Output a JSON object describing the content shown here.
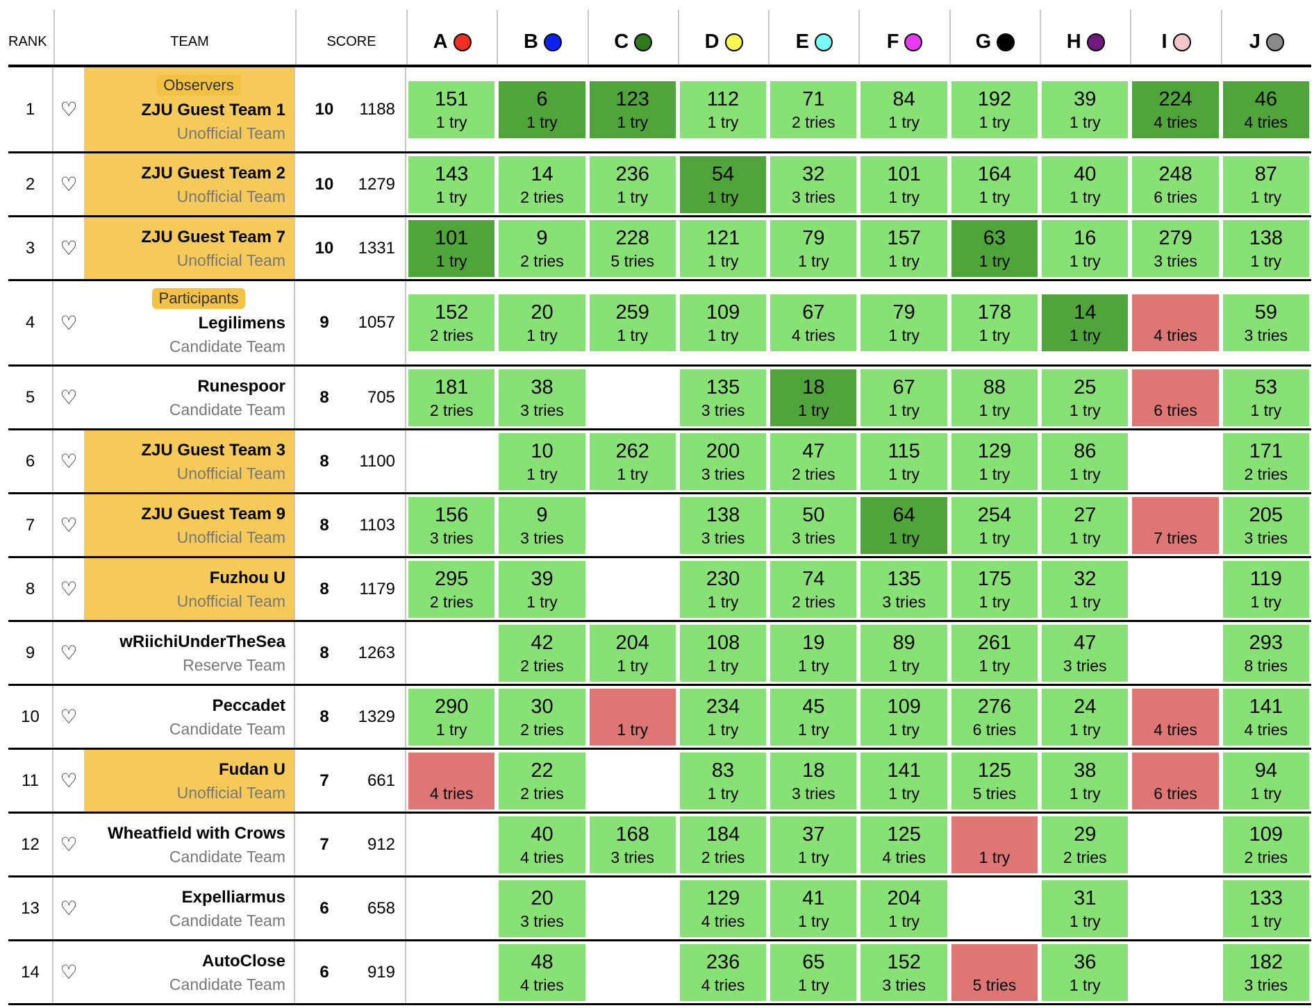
{
  "header": {
    "rank": "RANK",
    "team": "TEAM",
    "score": "SCORE"
  },
  "problems": [
    {
      "label": "A",
      "color": "#ee3124"
    },
    {
      "label": "B",
      "color": "#0a22f5"
    },
    {
      "label": "C",
      "color": "#2f7a1d"
    },
    {
      "label": "D",
      "color": "#fdf851"
    },
    {
      "label": "E",
      "color": "#78fbfd"
    },
    {
      "label": "F",
      "color": "#ea3af3"
    },
    {
      "label": "G",
      "color": "#000000"
    },
    {
      "label": "H",
      "color": "#701a7d"
    },
    {
      "label": "I",
      "color": "#f4c5ca"
    },
    {
      "label": "J",
      "color": "#8a8a8a"
    }
  ],
  "colors": {
    "solved": "#88e174",
    "first": "#4fa539",
    "failed": "#de7674",
    "unofficial": "#f6ca58",
    "badge": "#f3c244"
  },
  "rows": [
    {
      "rank": "1",
      "badge": "Observers",
      "name": "ZJU Guest Team 1",
      "sub": "Unofficial Team",
      "unofficial": true,
      "solved": "10",
      "penalty": "1188",
      "cells": [
        [
          "151",
          "1 try",
          "s"
        ],
        [
          "6",
          "1 try",
          "x"
        ],
        [
          "123",
          "1 try",
          "x"
        ],
        [
          "112",
          "1 try",
          "s"
        ],
        [
          "71",
          "2 tries",
          "s"
        ],
        [
          "84",
          "1 try",
          "s"
        ],
        [
          "192",
          "1 try",
          "s"
        ],
        [
          "39",
          "1 try",
          "s"
        ],
        [
          "224",
          "4 tries",
          "x"
        ],
        [
          "46",
          "4 tries",
          "x"
        ]
      ]
    },
    {
      "rank": "2",
      "name": "ZJU Guest Team 2",
      "sub": "Unofficial Team",
      "unofficial": true,
      "solved": "10",
      "penalty": "1279",
      "cells": [
        [
          "143",
          "1 try",
          "s"
        ],
        [
          "14",
          "2 tries",
          "s"
        ],
        [
          "236",
          "1 try",
          "s"
        ],
        [
          "54",
          "1 try",
          "x"
        ],
        [
          "32",
          "3 tries",
          "s"
        ],
        [
          "101",
          "1 try",
          "s"
        ],
        [
          "164",
          "1 try",
          "s"
        ],
        [
          "40",
          "1 try",
          "s"
        ],
        [
          "248",
          "6 tries",
          "s"
        ],
        [
          "87",
          "1 try",
          "s"
        ]
      ]
    },
    {
      "rank": "3",
      "name": "ZJU Guest Team 7",
      "sub": "Unofficial Team",
      "unofficial": true,
      "solved": "10",
      "penalty": "1331",
      "cells": [
        [
          "101",
          "1 try",
          "x"
        ],
        [
          "9",
          "2 tries",
          "s"
        ],
        [
          "228",
          "5 tries",
          "s"
        ],
        [
          "121",
          "1 try",
          "s"
        ],
        [
          "79",
          "1 try",
          "s"
        ],
        [
          "157",
          "1 try",
          "s"
        ],
        [
          "63",
          "1 try",
          "x"
        ],
        [
          "16",
          "1 try",
          "s"
        ],
        [
          "279",
          "3 tries",
          "s"
        ],
        [
          "138",
          "1 try",
          "s"
        ]
      ]
    },
    {
      "rank": "4",
      "badge": "Participants",
      "name": "Legilimens",
      "sub": "Candidate Team",
      "unofficial": false,
      "solved": "9",
      "penalty": "1057",
      "cells": [
        [
          "152",
          "2 tries",
          "s"
        ],
        [
          "20",
          "1 try",
          "s"
        ],
        [
          "259",
          "1 try",
          "s"
        ],
        [
          "109",
          "1 try",
          "s"
        ],
        [
          "67",
          "4 tries",
          "s"
        ],
        [
          "79",
          "1 try",
          "s"
        ],
        [
          "178",
          "1 try",
          "s"
        ],
        [
          "14",
          "1 try",
          "x"
        ],
        [
          "",
          "4 tries",
          "f"
        ],
        [
          "59",
          "3 tries",
          "s"
        ]
      ]
    },
    {
      "rank": "5",
      "name": "Runespoor",
      "sub": "Candidate Team",
      "unofficial": false,
      "solved": "8",
      "penalty": "705",
      "cells": [
        [
          "181",
          "2 tries",
          "s"
        ],
        [
          "38",
          "3 tries",
          "s"
        ],
        null,
        [
          "135",
          "3 tries",
          "s"
        ],
        [
          "18",
          "1 try",
          "x"
        ],
        [
          "67",
          "1 try",
          "s"
        ],
        [
          "88",
          "1 try",
          "s"
        ],
        [
          "25",
          "1 try",
          "s"
        ],
        [
          "",
          "6 tries",
          "f"
        ],
        [
          "53",
          "1 try",
          "s"
        ]
      ]
    },
    {
      "rank": "6",
      "name": "ZJU Guest Team 3",
      "sub": "Unofficial Team",
      "unofficial": true,
      "solved": "8",
      "penalty": "1100",
      "cells": [
        null,
        [
          "10",
          "1 try",
          "s"
        ],
        [
          "262",
          "1 try",
          "s"
        ],
        [
          "200",
          "3 tries",
          "s"
        ],
        [
          "47",
          "2 tries",
          "s"
        ],
        [
          "115",
          "1 try",
          "s"
        ],
        [
          "129",
          "1 try",
          "s"
        ],
        [
          "86",
          "1 try",
          "s"
        ],
        null,
        [
          "171",
          "2 tries",
          "s"
        ]
      ]
    },
    {
      "rank": "7",
      "name": "ZJU Guest Team 9",
      "sub": "Unofficial Team",
      "unofficial": true,
      "solved": "8",
      "penalty": "1103",
      "cells": [
        [
          "156",
          "3 tries",
          "s"
        ],
        [
          "9",
          "3 tries",
          "s"
        ],
        null,
        [
          "138",
          "3 tries",
          "s"
        ],
        [
          "50",
          "3 tries",
          "s"
        ],
        [
          "64",
          "1 try",
          "x"
        ],
        [
          "254",
          "1 try",
          "s"
        ],
        [
          "27",
          "1 try",
          "s"
        ],
        [
          "",
          "7 tries",
          "f"
        ],
        [
          "205",
          "3 tries",
          "s"
        ]
      ]
    },
    {
      "rank": "8",
      "name": "Fuzhou U",
      "sub": "Unofficial Team",
      "unofficial": true,
      "solved": "8",
      "penalty": "1179",
      "cells": [
        [
          "295",
          "2 tries",
          "s"
        ],
        [
          "39",
          "1 try",
          "s"
        ],
        null,
        [
          "230",
          "1 try",
          "s"
        ],
        [
          "74",
          "2 tries",
          "s"
        ],
        [
          "135",
          "3 tries",
          "s"
        ],
        [
          "175",
          "1 try",
          "s"
        ],
        [
          "32",
          "1 try",
          "s"
        ],
        null,
        [
          "119",
          "1 try",
          "s"
        ]
      ]
    },
    {
      "rank": "9",
      "name": "wRiichiUnderTheSea",
      "sub": "Reserve Team",
      "unofficial": false,
      "solved": "8",
      "penalty": "1263",
      "cells": [
        null,
        [
          "42",
          "2 tries",
          "s"
        ],
        [
          "204",
          "1 try",
          "s"
        ],
        [
          "108",
          "1 try",
          "s"
        ],
        [
          "19",
          "1 try",
          "s"
        ],
        [
          "89",
          "1 try",
          "s"
        ],
        [
          "261",
          "1 try",
          "s"
        ],
        [
          "47",
          "3 tries",
          "s"
        ],
        null,
        [
          "293",
          "8 tries",
          "s"
        ]
      ]
    },
    {
      "rank": "10",
      "name": "Peccadet",
      "sub": "Candidate Team",
      "unofficial": false,
      "solved": "8",
      "penalty": "1329",
      "cells": [
        [
          "290",
          "1 try",
          "s"
        ],
        [
          "30",
          "2 tries",
          "s"
        ],
        [
          "",
          "1 try",
          "f"
        ],
        [
          "234",
          "1 try",
          "s"
        ],
        [
          "45",
          "1 try",
          "s"
        ],
        [
          "109",
          "1 try",
          "s"
        ],
        [
          "276",
          "6 tries",
          "s"
        ],
        [
          "24",
          "1 try",
          "s"
        ],
        [
          "",
          "4 tries",
          "f"
        ],
        [
          "141",
          "4 tries",
          "s"
        ]
      ]
    },
    {
      "rank": "11",
      "name": "Fudan U",
      "sub": "Unofficial Team",
      "unofficial": true,
      "solved": "7",
      "penalty": "661",
      "cells": [
        [
          "",
          "4 tries",
          "f"
        ],
        [
          "22",
          "2 tries",
          "s"
        ],
        null,
        [
          "83",
          "1 try",
          "s"
        ],
        [
          "18",
          "3 tries",
          "s"
        ],
        [
          "141",
          "1 try",
          "s"
        ],
        [
          "125",
          "5 tries",
          "s"
        ],
        [
          "38",
          "1 try",
          "s"
        ],
        [
          "",
          "6 tries",
          "f"
        ],
        [
          "94",
          "1 try",
          "s"
        ]
      ]
    },
    {
      "rank": "12",
      "name": "Wheatfield with Crows",
      "sub": "Candidate Team",
      "unofficial": false,
      "solved": "7",
      "penalty": "912",
      "cells": [
        null,
        [
          "40",
          "4 tries",
          "s"
        ],
        [
          "168",
          "3 tries",
          "s"
        ],
        [
          "184",
          "2 tries",
          "s"
        ],
        [
          "37",
          "1 try",
          "s"
        ],
        [
          "125",
          "4 tries",
          "s"
        ],
        [
          "",
          "1 try",
          "f"
        ],
        [
          "29",
          "2 tries",
          "s"
        ],
        null,
        [
          "109",
          "2 tries",
          "s"
        ]
      ]
    },
    {
      "rank": "13",
      "name": "Expelliarmus",
      "sub": "Candidate Team",
      "unofficial": false,
      "solved": "6",
      "penalty": "658",
      "cells": [
        null,
        [
          "20",
          "3 tries",
          "s"
        ],
        null,
        [
          "129",
          "4 tries",
          "s"
        ],
        [
          "41",
          "1 try",
          "s"
        ],
        [
          "204",
          "1 try",
          "s"
        ],
        null,
        [
          "31",
          "1 try",
          "s"
        ],
        null,
        [
          "133",
          "1 try",
          "s"
        ]
      ]
    },
    {
      "rank": "14",
      "name": "AutoClose",
      "sub": "Candidate Team",
      "unofficial": false,
      "solved": "6",
      "penalty": "919",
      "cells": [
        null,
        [
          "48",
          "4 tries",
          "s"
        ],
        null,
        [
          "236",
          "4 tries",
          "s"
        ],
        [
          "65",
          "1 try",
          "s"
        ],
        [
          "152",
          "3 tries",
          "s"
        ],
        [
          "",
          "5 tries",
          "f"
        ],
        [
          "36",
          "1 try",
          "s"
        ],
        null,
        [
          "182",
          "3 tries",
          "s"
        ]
      ]
    }
  ]
}
